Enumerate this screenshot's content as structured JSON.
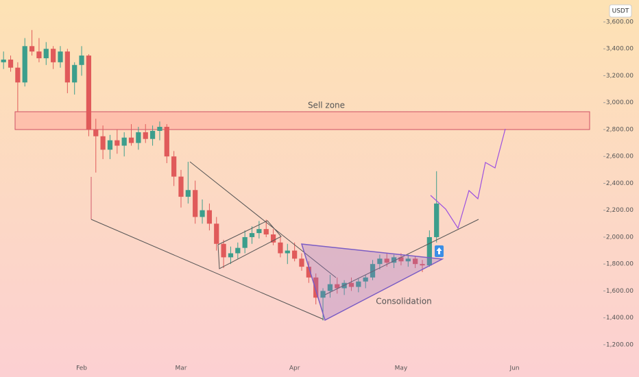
{
  "chart_data": {
    "type": "candlestick",
    "unit_label": "USDT",
    "annotations": [
      "Sell zone",
      "Consolidation"
    ],
    "categories": [
      null,
      null,
      null,
      null,
      null,
      null,
      null,
      null,
      null,
      null,
      null,
      "Feb",
      null,
      null,
      null,
      null,
      null,
      null,
      null,
      null,
      null,
      null,
      null,
      null,
      null,
      "Mar",
      null,
      null,
      null,
      null,
      null,
      null,
      null,
      null,
      null,
      null,
      null,
      null,
      null,
      null,
      null,
      "Apr",
      null,
      null,
      null,
      null,
      null,
      null,
      null,
      null,
      null,
      null,
      null,
      null,
      null,
      null,
      "May",
      null,
      null,
      null,
      null,
      null,
      null,
      null,
      null,
      null,
      null,
      null,
      null,
      null,
      null,
      null,
      "Jun",
      null,
      null,
      null,
      null,
      null,
      null,
      null,
      null,
      null,
      null,
      null,
      null
    ],
    "open": [
      3300,
      3320,
      3260,
      3150,
      3420,
      3380,
      3330,
      3400,
      3300,
      3380,
      3150,
      3280,
      3350,
      2800,
      2750,
      2650,
      2720,
      2680,
      2740,
      2700,
      2780,
      2730,
      2790,
      2820,
      2600,
      2450,
      2300,
      2350,
      2150,
      2200,
      2100,
      1950,
      1850,
      1880,
      1920,
      2000,
      2030,
      2060,
      2020,
      1960,
      1880,
      1900,
      1840,
      1780,
      1700,
      1550,
      1600,
      1650,
      1620,
      1660,
      1630,
      1670,
      1700,
      1800,
      1840,
      1810,
      1850,
      1820,
      1840,
      1800,
      1790,
      2000,
      null,
      null,
      null,
      null,
      null,
      null,
      null,
      null,
      null,
      null,
      null,
      null,
      null,
      null,
      null,
      null,
      null,
      null,
      null,
      null,
      null,
      null,
      null
    ],
    "high": [
      3380,
      3350,
      3300,
      3480,
      3540,
      3480,
      3450,
      3420,
      3420,
      3400,
      3300,
      3420,
      3360,
      2880,
      2830,
      2760,
      2800,
      2780,
      2840,
      2820,
      2840,
      2830,
      2860,
      2840,
      2640,
      2500,
      2560,
      2420,
      2280,
      2250,
      2150,
      1980,
      1930,
      1960,
      2050,
      2080,
      2120,
      2130,
      2060,
      2000,
      1950,
      1960,
      1880,
      1820,
      1730,
      1620,
      1720,
      1700,
      1680,
      1700,
      1690,
      1720,
      1830,
      1870,
      1880,
      1870,
      1880,
      1870,
      1860,
      1830,
      2050,
      2490,
      null,
      null,
      null,
      null,
      null,
      null,
      null,
      null,
      null,
      null,
      null,
      null,
      null,
      null,
      null,
      null,
      null,
      null,
      null,
      null,
      null,
      null,
      null
    ],
    "low": [
      3250,
      3230,
      2930,
      3120,
      3350,
      3300,
      3280,
      3250,
      3260,
      3070,
      3060,
      3200,
      2750,
      2480,
      2580,
      2580,
      2620,
      2600,
      2680,
      2650,
      2700,
      2680,
      2720,
      2550,
      2380,
      2220,
      2250,
      2100,
      2100,
      2050,
      1900,
      1770,
      1800,
      1840,
      1880,
      1950,
      1990,
      2000,
      1940,
      1850,
      1800,
      1820,
      1750,
      1660,
      1500,
      1380,
      1550,
      1580,
      1570,
      1600,
      1590,
      1620,
      1680,
      1760,
      1780,
      1770,
      1790,
      1780,
      1770,
      1740,
      1780,
      1960,
      null,
      null,
      null,
      null,
      null,
      null,
      null,
      null,
      null,
      null,
      null,
      null,
      null,
      null,
      null,
      null,
      null,
      null,
      null,
      null,
      null,
      null,
      null
    ],
    "close": [
      3320,
      3260,
      3150,
      3420,
      3380,
      3330,
      3400,
      3300,
      3380,
      3150,
      3280,
      3350,
      2800,
      2750,
      2650,
      2720,
      2680,
      2740,
      2700,
      2780,
      2730,
      2790,
      2820,
      2600,
      2450,
      2300,
      2350,
      2150,
      2200,
      2100,
      1950,
      1850,
      1880,
      1920,
      2000,
      2030,
      2060,
      2020,
      1960,
      1880,
      1900,
      1840,
      1780,
      1700,
      1550,
      1600,
      1650,
      1620,
      1660,
      1630,
      1670,
      1700,
      1800,
      1840,
      1810,
      1850,
      1820,
      1840,
      1800,
      1790,
      2000,
      2250,
      null,
      null,
      null,
      null,
      null,
      null,
      null,
      null,
      null,
      null,
      null,
      null,
      null,
      null,
      null,
      null,
      null,
      null,
      null,
      null,
      null,
      null,
      null
    ],
    "up_color": "#3c9e8c",
    "down_color": "#e05a5a",
    "ylim": [
      1113,
      3763
    ],
    "yticks": [
      {
        "value": 1200,
        "label": "1,200.00"
      },
      {
        "value": 1400,
        "label": "1,400.00"
      },
      {
        "value": 1600,
        "label": "1,600.00"
      },
      {
        "value": 1800,
        "label": "1,800.00"
      },
      {
        "value": 2000,
        "label": "2,000.00"
      },
      {
        "value": 2200,
        "label": "2,200.00"
      },
      {
        "value": 2400,
        "label": "2,400.00"
      },
      {
        "value": 2600,
        "label": "2,600.00"
      },
      {
        "value": 2800,
        "label": "2,800.00"
      },
      {
        "value": 3000,
        "label": "3,000.00"
      },
      {
        "value": 3200,
        "label": "3,200.00"
      },
      {
        "value": 3400,
        "label": "3,400.00"
      },
      {
        "value": 3600,
        "label": "3,600.00"
      }
    ],
    "grid": false
  }
}
